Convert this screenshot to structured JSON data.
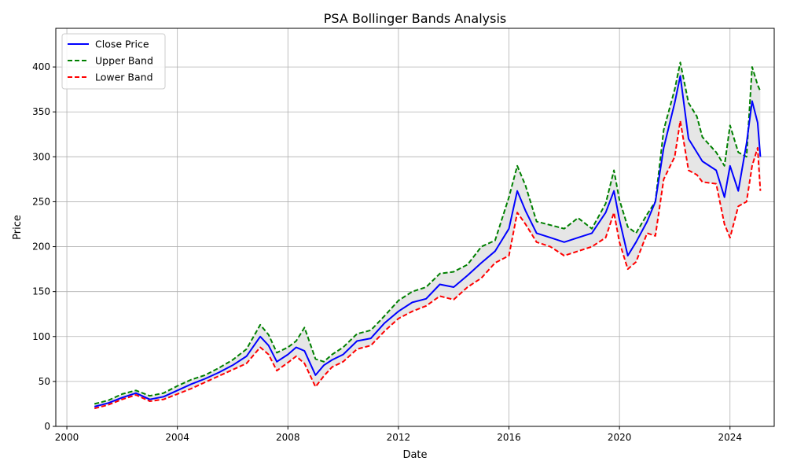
{
  "chart_data": {
    "type": "line",
    "title": "PSA Bollinger Bands Analysis",
    "xlabel": "Date",
    "ylabel": "Price",
    "xlim": [
      1999.6,
      2025.6
    ],
    "ylim": [
      0,
      443
    ],
    "x_ticks": [
      2000,
      2004,
      2008,
      2012,
      2016,
      2020,
      2024
    ],
    "y_ticks": [
      0,
      50,
      100,
      150,
      200,
      250,
      300,
      350,
      400
    ],
    "grid": true,
    "legend_position": "top-left",
    "band_fill": "#dcdcdc",
    "series": [
      {
        "name": "Close Price",
        "color": "#0000ff",
        "style": "solid",
        "points": [
          [
            2001.0,
            22
          ],
          [
            2001.5,
            26
          ],
          [
            2002.0,
            32
          ],
          [
            2002.5,
            37
          ],
          [
            2003.0,
            30
          ],
          [
            2003.5,
            33
          ],
          [
            2004.0,
            40
          ],
          [
            2004.5,
            47
          ],
          [
            2005.0,
            53
          ],
          [
            2005.5,
            60
          ],
          [
            2006.0,
            68
          ],
          [
            2006.5,
            78
          ],
          [
            2007.0,
            100
          ],
          [
            2007.3,
            90
          ],
          [
            2007.6,
            72
          ],
          [
            2008.0,
            80
          ],
          [
            2008.3,
            88
          ],
          [
            2008.6,
            84
          ],
          [
            2009.0,
            57
          ],
          [
            2009.3,
            68
          ],
          [
            2009.6,
            74
          ],
          [
            2010.0,
            80
          ],
          [
            2010.5,
            95
          ],
          [
            2011.0,
            98
          ],
          [
            2011.5,
            115
          ],
          [
            2012.0,
            128
          ],
          [
            2012.5,
            138
          ],
          [
            2013.0,
            142
          ],
          [
            2013.5,
            158
          ],
          [
            2014.0,
            155
          ],
          [
            2014.5,
            168
          ],
          [
            2015.0,
            182
          ],
          [
            2015.5,
            195
          ],
          [
            2016.0,
            220
          ],
          [
            2016.3,
            262
          ],
          [
            2016.6,
            240
          ],
          [
            2017.0,
            215
          ],
          [
            2017.5,
            210
          ],
          [
            2018.0,
            205
          ],
          [
            2018.5,
            210
          ],
          [
            2019.0,
            215
          ],
          [
            2019.5,
            238
          ],
          [
            2019.8,
            262
          ],
          [
            2020.0,
            230
          ],
          [
            2020.3,
            190
          ],
          [
            2020.6,
            205
          ],
          [
            2021.0,
            228
          ],
          [
            2021.3,
            250
          ],
          [
            2021.6,
            310
          ],
          [
            2022.0,
            360
          ],
          [
            2022.2,
            390
          ],
          [
            2022.5,
            320
          ],
          [
            2022.8,
            305
          ],
          [
            2023.0,
            295
          ],
          [
            2023.5,
            285
          ],
          [
            2023.8,
            255
          ],
          [
            2024.0,
            290
          ],
          [
            2024.3,
            262
          ],
          [
            2024.6,
            315
          ],
          [
            2024.8,
            362
          ],
          [
            2025.0,
            338
          ],
          [
            2025.1,
            300
          ]
        ]
      },
      {
        "name": "Upper Band",
        "color": "#008000",
        "style": "dashed",
        "points": [
          [
            2001.0,
            25
          ],
          [
            2001.5,
            29
          ],
          [
            2002.0,
            36
          ],
          [
            2002.5,
            40
          ],
          [
            2003.0,
            34
          ],
          [
            2003.5,
            37
          ],
          [
            2004.0,
            45
          ],
          [
            2004.5,
            52
          ],
          [
            2005.0,
            57
          ],
          [
            2005.5,
            65
          ],
          [
            2006.0,
            74
          ],
          [
            2006.5,
            86
          ],
          [
            2007.0,
            113
          ],
          [
            2007.3,
            102
          ],
          [
            2007.6,
            82
          ],
          [
            2008.0,
            88
          ],
          [
            2008.3,
            95
          ],
          [
            2008.6,
            110
          ],
          [
            2009.0,
            75
          ],
          [
            2009.3,
            72
          ],
          [
            2009.6,
            80
          ],
          [
            2010.0,
            88
          ],
          [
            2010.5,
            103
          ],
          [
            2011.0,
            107
          ],
          [
            2011.5,
            123
          ],
          [
            2012.0,
            140
          ],
          [
            2012.5,
            150
          ],
          [
            2013.0,
            155
          ],
          [
            2013.5,
            170
          ],
          [
            2014.0,
            172
          ],
          [
            2014.5,
            180
          ],
          [
            2015.0,
            200
          ],
          [
            2015.5,
            207
          ],
          [
            2016.0,
            255
          ],
          [
            2016.3,
            290
          ],
          [
            2016.6,
            268
          ],
          [
            2017.0,
            228
          ],
          [
            2017.5,
            224
          ],
          [
            2018.0,
            220
          ],
          [
            2018.5,
            232
          ],
          [
            2019.0,
            220
          ],
          [
            2019.5,
            248
          ],
          [
            2019.8,
            285
          ],
          [
            2020.0,
            252
          ],
          [
            2020.3,
            222
          ],
          [
            2020.6,
            215
          ],
          [
            2021.0,
            236
          ],
          [
            2021.3,
            250
          ],
          [
            2021.6,
            330
          ],
          [
            2022.0,
            375
          ],
          [
            2022.2,
            405
          ],
          [
            2022.5,
            360
          ],
          [
            2022.8,
            345
          ],
          [
            2023.0,
            322
          ],
          [
            2023.5,
            305
          ],
          [
            2023.8,
            290
          ],
          [
            2024.0,
            335
          ],
          [
            2024.3,
            305
          ],
          [
            2024.6,
            300
          ],
          [
            2024.8,
            400
          ],
          [
            2025.0,
            380
          ],
          [
            2025.1,
            373
          ]
        ]
      },
      {
        "name": "Lower Band",
        "color": "#ff0000",
        "style": "dashed",
        "points": [
          [
            2001.0,
            20
          ],
          [
            2001.5,
            24
          ],
          [
            2002.0,
            30
          ],
          [
            2002.5,
            35
          ],
          [
            2003.0,
            28
          ],
          [
            2003.5,
            30
          ],
          [
            2004.0,
            36
          ],
          [
            2004.5,
            42
          ],
          [
            2005.0,
            49
          ],
          [
            2005.5,
            56
          ],
          [
            2006.0,
            63
          ],
          [
            2006.5,
            70
          ],
          [
            2007.0,
            88
          ],
          [
            2007.3,
            80
          ],
          [
            2007.6,
            62
          ],
          [
            2008.0,
            71
          ],
          [
            2008.3,
            78
          ],
          [
            2008.6,
            70
          ],
          [
            2009.0,
            44
          ],
          [
            2009.3,
            56
          ],
          [
            2009.6,
            66
          ],
          [
            2010.0,
            72
          ],
          [
            2010.5,
            86
          ],
          [
            2011.0,
            90
          ],
          [
            2011.5,
            106
          ],
          [
            2012.0,
            120
          ],
          [
            2012.5,
            128
          ],
          [
            2013.0,
            134
          ],
          [
            2013.5,
            145
          ],
          [
            2014.0,
            141
          ],
          [
            2014.5,
            155
          ],
          [
            2015.0,
            165
          ],
          [
            2015.5,
            182
          ],
          [
            2016.0,
            190
          ],
          [
            2016.3,
            238
          ],
          [
            2016.6,
            225
          ],
          [
            2017.0,
            205
          ],
          [
            2017.5,
            200
          ],
          [
            2018.0,
            190
          ],
          [
            2018.5,
            195
          ],
          [
            2019.0,
            200
          ],
          [
            2019.5,
            210
          ],
          [
            2019.8,
            238
          ],
          [
            2020.0,
            205
          ],
          [
            2020.3,
            175
          ],
          [
            2020.6,
            183
          ],
          [
            2021.0,
            215
          ],
          [
            2021.3,
            212
          ],
          [
            2021.6,
            275
          ],
          [
            2022.0,
            300
          ],
          [
            2022.2,
            340
          ],
          [
            2022.5,
            285
          ],
          [
            2022.8,
            280
          ],
          [
            2023.0,
            272
          ],
          [
            2023.5,
            270
          ],
          [
            2023.8,
            225
          ],
          [
            2024.0,
            210
          ],
          [
            2024.3,
            245
          ],
          [
            2024.6,
            250
          ],
          [
            2024.8,
            290
          ],
          [
            2025.0,
            310
          ],
          [
            2025.1,
            262
          ]
        ]
      }
    ]
  }
}
